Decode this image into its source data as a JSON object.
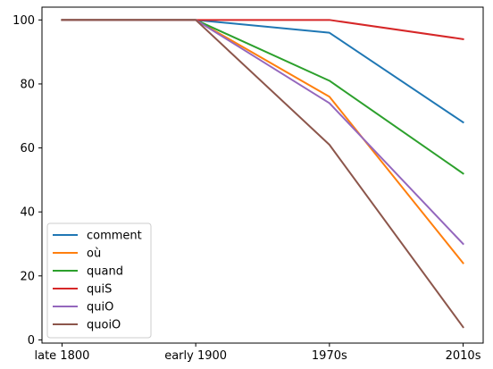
{
  "chart_data": {
    "type": "line",
    "categories": [
      "late 1800",
      "early 1900",
      "1970s",
      "2010s"
    ],
    "series": [
      {
        "name": "comment",
        "color": "#1f77b4",
        "values": [
          100,
          100,
          96,
          68
        ]
      },
      {
        "name": "où",
        "color": "#ff7f0e",
        "values": [
          100,
          100,
          76,
          24
        ]
      },
      {
        "name": "quand",
        "color": "#2ca02c",
        "values": [
          100,
          100,
          81,
          52
        ]
      },
      {
        "name": "quiS",
        "color": "#d62728",
        "values": [
          100,
          100,
          100,
          94
        ]
      },
      {
        "name": "quiO",
        "color": "#9467bd",
        "values": [
          100,
          100,
          74,
          30
        ]
      },
      {
        "name": "quoiO",
        "color": "#8c564b",
        "values": [
          100,
          100,
          61,
          4
        ]
      }
    ],
    "yticks": [
      0,
      20,
      40,
      60,
      80,
      100
    ],
    "ylim": [
      -1,
      104
    ],
    "title": "",
    "xlabel": "",
    "ylabel": "",
    "legend": "lower-left",
    "grid": false
  }
}
